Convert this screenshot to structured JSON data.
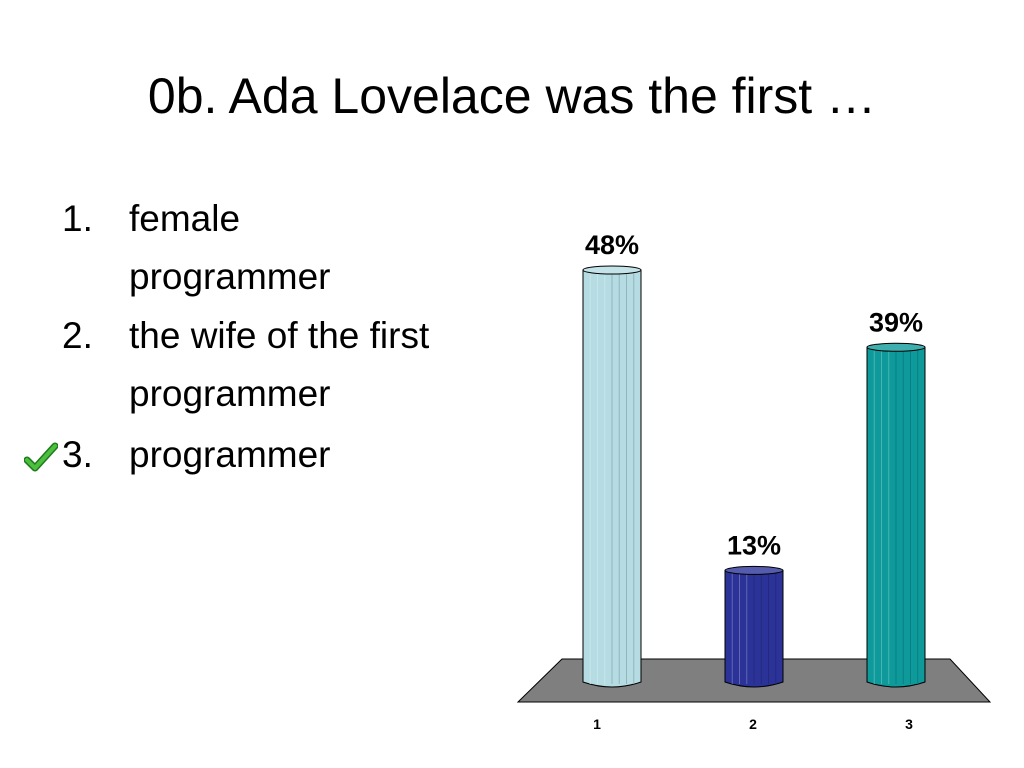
{
  "slide": {
    "title": "0b. Ada Lovelace was the first …",
    "options": [
      {
        "number": "1.",
        "line1": "female",
        "line2": "programmer"
      },
      {
        "number": "2.",
        "line1": "the wife of the first",
        "line2": "programmer"
      },
      {
        "number": "3.",
        "line1": "programmer",
        "line2": ""
      }
    ],
    "correct_option": 3,
    "correct_icon": "checkmark-icon"
  },
  "chart_data": {
    "type": "bar",
    "categories": [
      "1",
      "2",
      "3"
    ],
    "values": [
      48,
      13,
      39
    ],
    "data_labels": [
      "48%",
      "13%",
      "39%"
    ],
    "colors": [
      "#b4dce2",
      "#2b3399",
      "#0e9a9a"
    ],
    "floor_color": "#7f7f7f",
    "title": "",
    "xlabel": "",
    "ylabel": "",
    "ylim": [
      0,
      48
    ],
    "grid": false,
    "legend": "none"
  }
}
